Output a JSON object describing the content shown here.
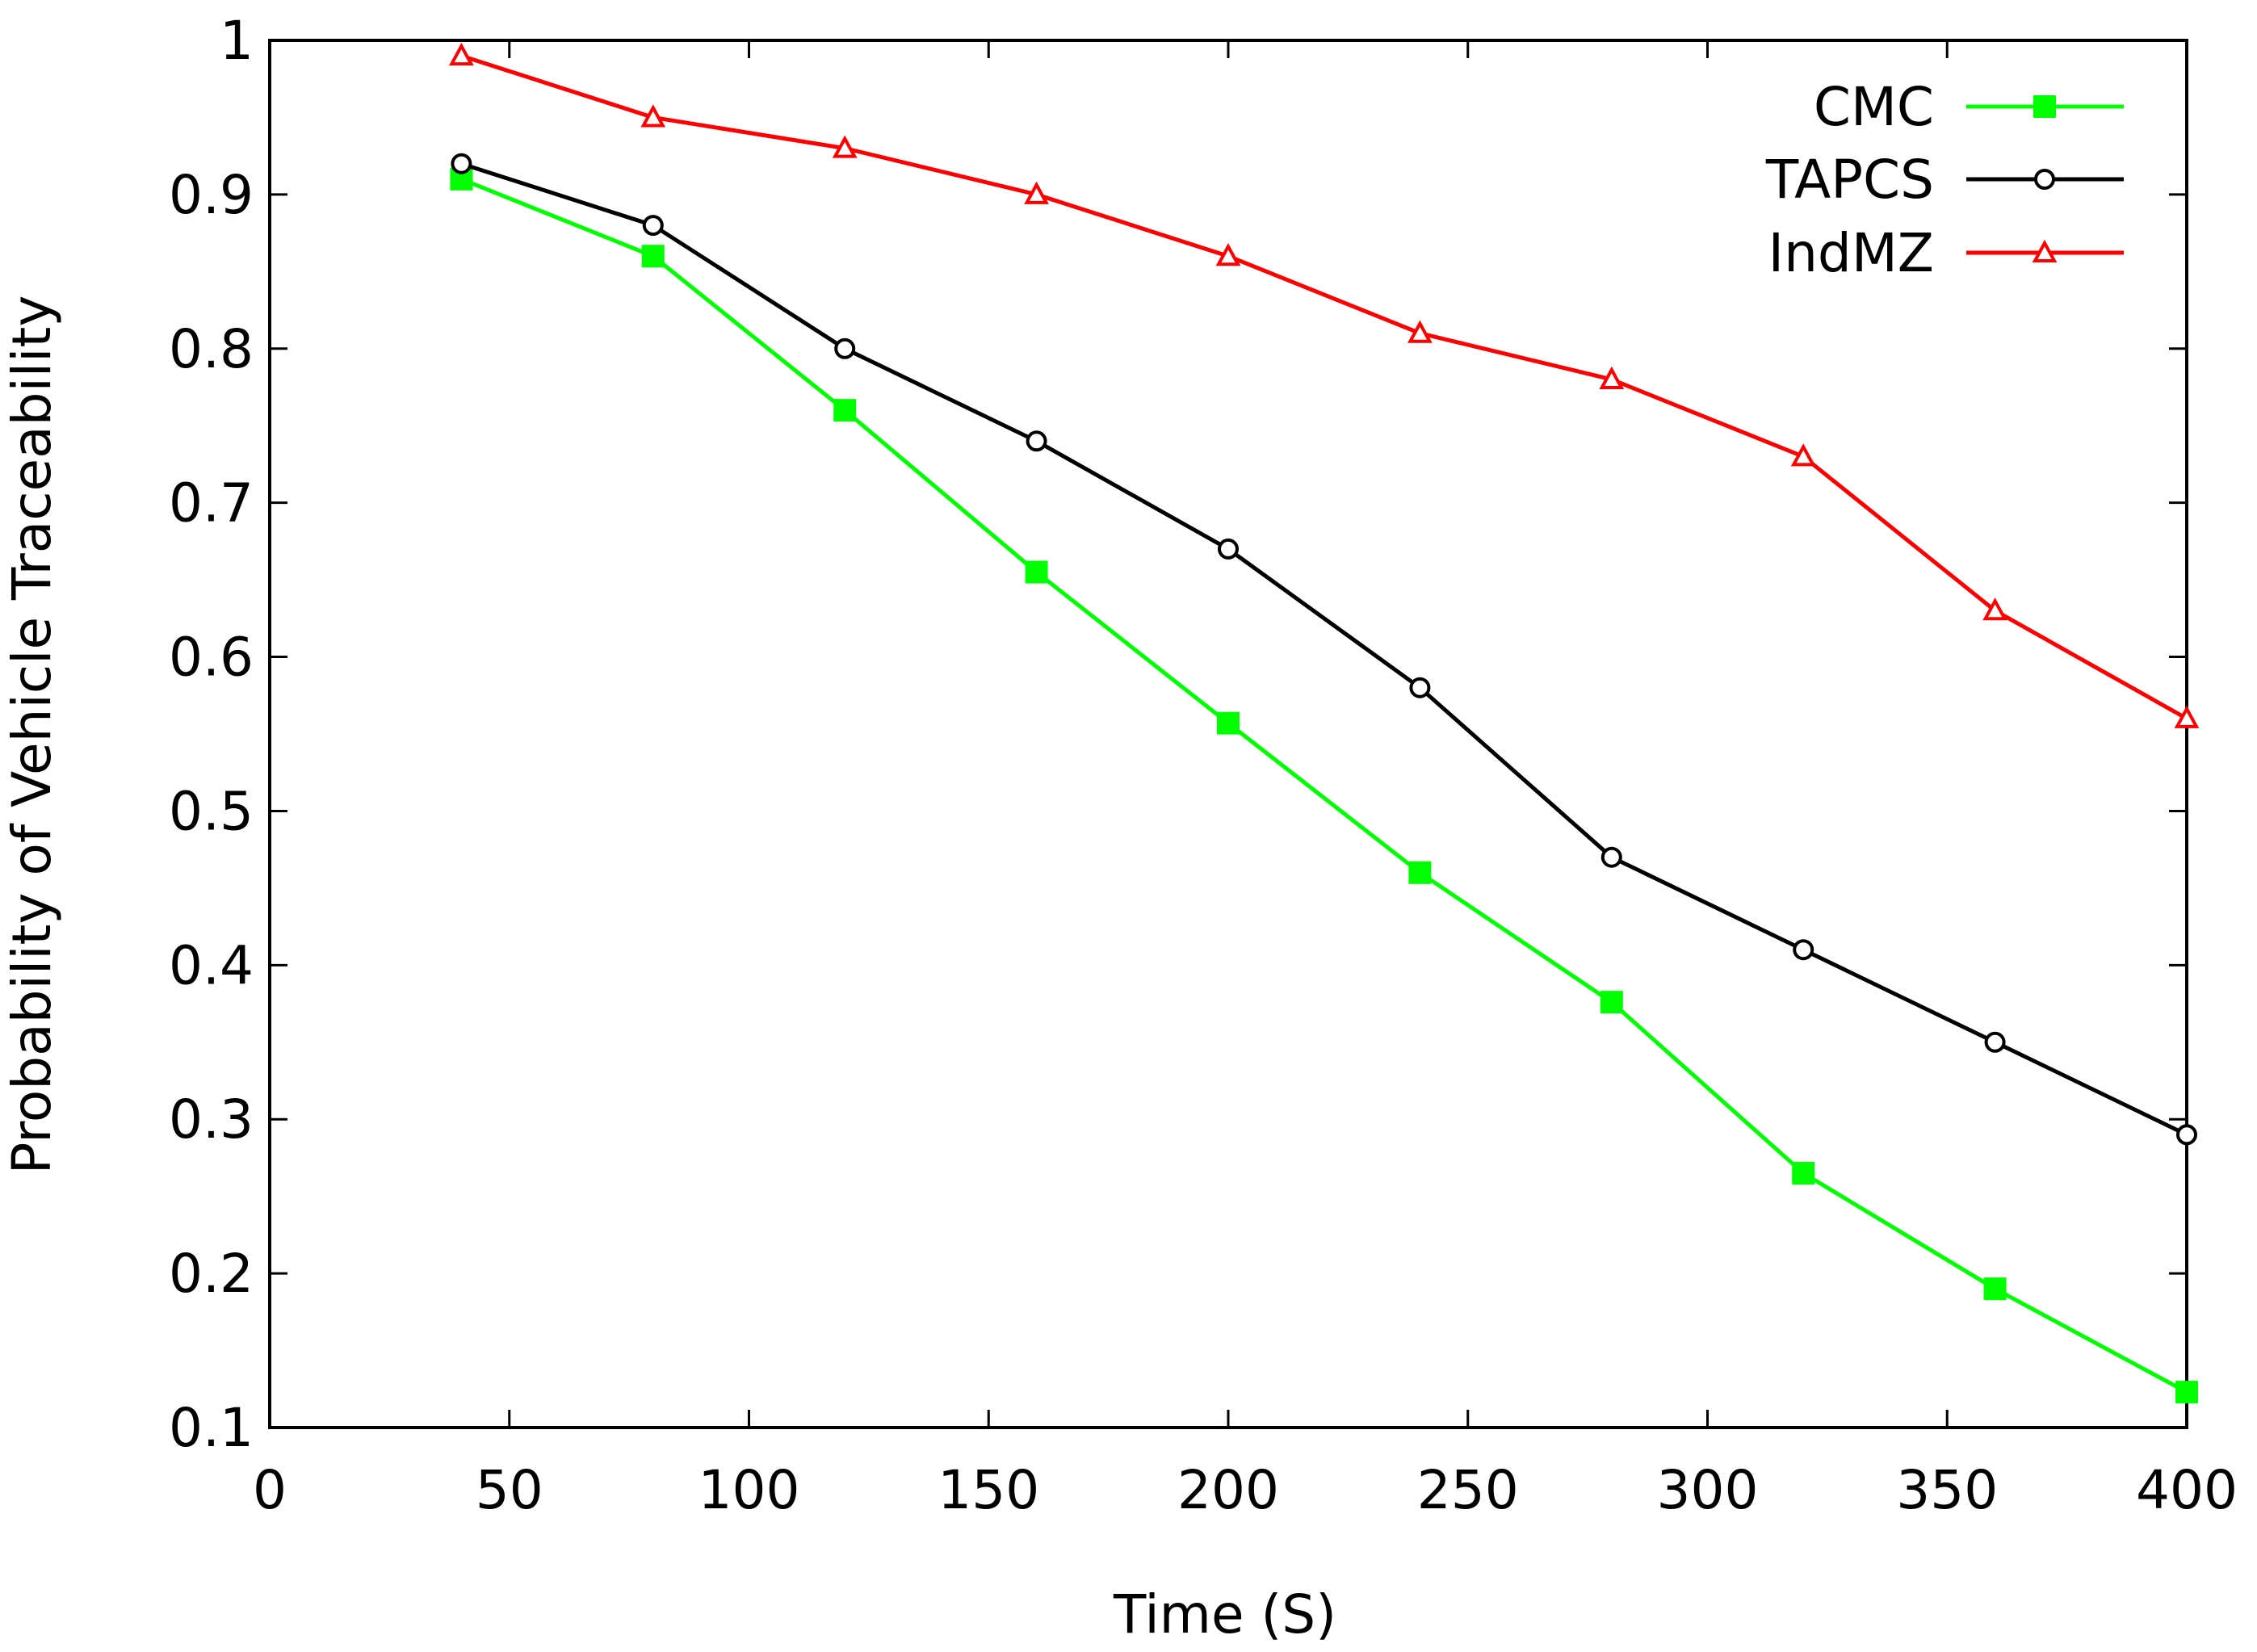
{
  "chart_data": {
    "type": "line",
    "title": "",
    "xlabel": "Time (S)",
    "ylabel": "Probability of Vehicle Traceability",
    "xlim": [
      0,
      400
    ],
    "ylim": [
      0.1,
      1.0
    ],
    "x_ticks": [
      0,
      50,
      100,
      150,
      200,
      250,
      300,
      350,
      400
    ],
    "x_tick_labels": [
      "0",
      "50",
      "100",
      "150",
      "200",
      "250",
      "300",
      "350",
      "400"
    ],
    "y_ticks": [
      0.1,
      0.2,
      0.3,
      0.4,
      0.5,
      0.6,
      0.7,
      0.8,
      0.9,
      1.0
    ],
    "y_tick_labels": [
      "0.1",
      "0.2",
      "0.3",
      "0.4",
      "0.5",
      "0.6",
      "0.7",
      "0.8",
      "0.9",
      "1"
    ],
    "grid": false,
    "legend_position": "top-right",
    "x": [
      40,
      80,
      120,
      160,
      200,
      240,
      280,
      320,
      360,
      400
    ],
    "series": [
      {
        "name": "CMC",
        "color": "#00ff00",
        "marker": "filled-square",
        "values": [
          0.91,
          0.86,
          0.76,
          0.655,
          0.557,
          0.46,
          0.376,
          0.265,
          0.19,
          0.123
        ]
      },
      {
        "name": "TAPCS",
        "color": "#000000",
        "marker": "open-circle",
        "values": [
          0.92,
          0.88,
          0.8,
          0.74,
          0.67,
          0.58,
          0.47,
          0.41,
          0.35,
          0.29
        ]
      },
      {
        "name": "IndMZ",
        "color": "#ff0000",
        "marker": "open-triangle",
        "values": [
          0.99,
          0.95,
          0.93,
          0.9,
          0.86,
          0.81,
          0.78,
          0.73,
          0.63,
          0.56
        ]
      }
    ]
  }
}
